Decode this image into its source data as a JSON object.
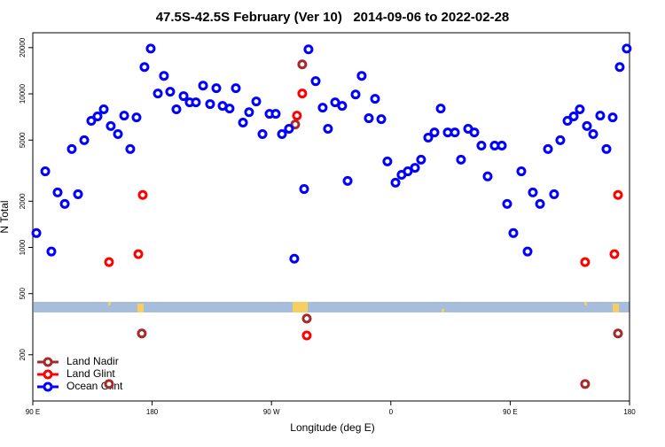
{
  "chart_data": {
    "type": "scatter",
    "title": "47.5S-42.5S February (Ver 10)   2014-09-06 to 2022-02-28",
    "x_label": "Longitude (deg E)",
    "y_label": "N Total",
    "xlim": [
      90,
      540
    ],
    "xticks": [
      {
        "value": 90,
        "label": "90 E"
      },
      {
        "value": 180,
        "label": "180"
      },
      {
        "value": 270,
        "label": "90 W"
      },
      {
        "value": 360,
        "label": "0"
      },
      {
        "value": 450,
        "label": "90 E"
      },
      {
        "value": 540,
        "label": "180"
      }
    ],
    "ylim": [
      100,
      25000
    ],
    "yticks": [
      200,
      500,
      1000,
      2000,
      5000,
      10000,
      20000
    ],
    "log_y": true,
    "grid": false,
    "legend": "lower left",
    "series": [
      {
        "name": "Land Nadir",
        "color": "#a52a2a",
        "x": [
          147.5,
          172.2,
          287.9,
          293.2,
          296.6,
          506.5,
          531.3
        ],
        "values": [
          129,
          275,
          6320,
          15560,
          344,
          129,
          275
        ]
      },
      {
        "name": "Land Glint",
        "color": "#ff0000",
        "x": [
          147.5,
          169.6,
          172.9,
          289.2,
          293.2,
          296.6,
          506.5,
          528.6,
          531.3
        ],
        "values": [
          802,
          904,
          2195,
          7215,
          10050,
          267,
          802,
          904,
          2195
        ]
      },
      {
        "name": "Ocean Glint",
        "color": "#0000ff",
        "x": [
          92.7,
          99.4,
          104.0,
          108.7,
          114.1,
          119.4,
          124.1,
          128.8,
          134.1,
          138.8,
          143.5,
          148.8,
          154.2,
          158.9,
          163.5,
          168.2,
          174.2,
          178.9,
          184.3,
          188.9,
          193.6,
          198.3,
          203.7,
          208.3,
          213.0,
          218.4,
          223.7,
          228.4,
          233.1,
          238.4,
          243.1,
          248.5,
          253.1,
          258.5,
          263.2,
          268.5,
          273.2,
          277.9,
          283.2,
          287.2,
          294.6,
          297.9,
          303.3,
          308.6,
          312.6,
          318.0,
          323.3,
          327.4,
          333.4,
          338.0,
          343.4,
          348.1,
          352.8,
          357.4,
          363.5,
          368.1,
          372.8,
          378.2,
          382.8,
          388.2,
          392.9,
          397.6,
          402.9,
          408.3,
          412.9,
          418.3,
          423.0,
          428.3,
          433.0,
          438.3,
          443.7,
          447.7,
          452.4,
          458.4,
          463.1,
          467.1,
          472.5,
          478.5,
          483.1,
          487.8,
          493.2,
          497.9,
          502.5,
          507.9,
          512.6,
          517.9,
          522.6,
          527.3,
          532.6,
          537.9
        ],
        "values": [
          1240,
          3130,
          940,
          2280,
          1920,
          4370,
          2220,
          4990,
          6670,
          7130,
          7930,
          6170,
          5470,
          7220,
          4370,
          7030,
          14950,
          19720,
          10050,
          13100,
          10320,
          7930,
          9670,
          8810,
          8810,
          11320,
          8580,
          10890,
          8350,
          8020,
          10890,
          6500,
          7600,
          8920,
          5470,
          7410,
          7410,
          5470,
          5920,
          845,
          2400,
          19480,
          12100,
          8130,
          5920,
          8810,
          8350,
          2710,
          9910,
          13100,
          6940,
          9290,
          6840,
          3630,
          2640,
          2970,
          3130,
          3300,
          3730,
          5190,
          5610,
          8020,
          5610,
          5610,
          3730,
          5920,
          5610,
          4600,
          2900,
          4600,
          4600,
          1920,
          1240,
          3130,
          940,
          2280,
          1920,
          4370,
          2220,
          4990,
          6670,
          7130,
          7930,
          6170,
          5470,
          7220,
          4370,
          7030,
          14950,
          19720
        ]
      }
    ]
  }
}
